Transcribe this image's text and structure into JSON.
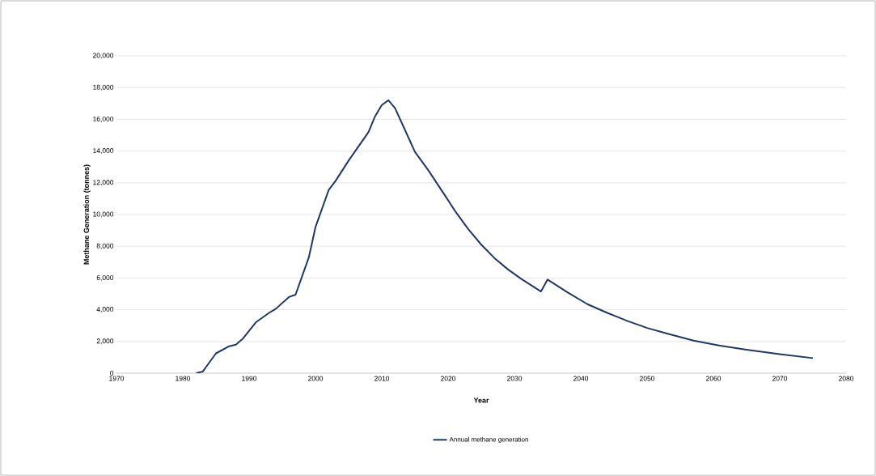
{
  "chart_data": {
    "type": "line",
    "xlabel": "Year",
    "ylabel": "Methane Generation (tonnes)",
    "series": [
      {
        "name": "Annual methane generation",
        "color": "#203864",
        "x": [
          1982,
          1983,
          1985,
          1987,
          1988,
          1989,
          1991,
          1993,
          1994,
          1996,
          1997,
          1999,
          2000,
          2002,
          2003,
          2005,
          2006,
          2008,
          2009,
          2010,
          2011,
          2012,
          2015,
          2017,
          2020,
          2021,
          2023,
          2025,
          2027,
          2029,
          2031,
          2034,
          2035,
          2038,
          2041,
          2044,
          2047,
          2050,
          2053,
          2057,
          2061,
          2065,
          2070,
          2075
        ],
        "values": [
          0,
          100,
          1250,
          1700,
          1800,
          2150,
          3200,
          3800,
          4050,
          4800,
          4950,
          7300,
          9200,
          11550,
          12100,
          13400,
          14000,
          15200,
          16200,
          16900,
          17200,
          16700,
          13950,
          12800,
          10900,
          10250,
          9100,
          8100,
          7250,
          6550,
          5950,
          5150,
          5900,
          5100,
          4350,
          3800,
          3300,
          2850,
          2500,
          2050,
          1730,
          1480,
          1200,
          950
        ]
      }
    ],
    "xlim": [
      1970,
      2080
    ],
    "xticks": [
      1970,
      1980,
      1990,
      2000,
      2010,
      2020,
      2030,
      2040,
      2050,
      2060,
      2070,
      2080
    ],
    "ylim": [
      0,
      20000
    ],
    "yticks": [
      0,
      {
        "value": 2000,
        "label": "2,000"
      },
      {
        "value": 4000,
        "label": "4,000"
      },
      {
        "value": 6000,
        "label": "6,000"
      },
      {
        "value": 8000,
        "label": "8,000"
      },
      {
        "value": 10000,
        "label": "10,000"
      },
      {
        "value": 12000,
        "label": "12,000"
      },
      {
        "value": 14000,
        "label": "14,000"
      },
      {
        "value": 16000,
        "label": "16,000"
      },
      {
        "value": 18000,
        "label": "18,000"
      },
      {
        "value": 20000,
        "label": "20,000"
      }
    ],
    "grid": "y",
    "legend": "bottom",
    "marker": "none",
    "line_style": "solid"
  }
}
